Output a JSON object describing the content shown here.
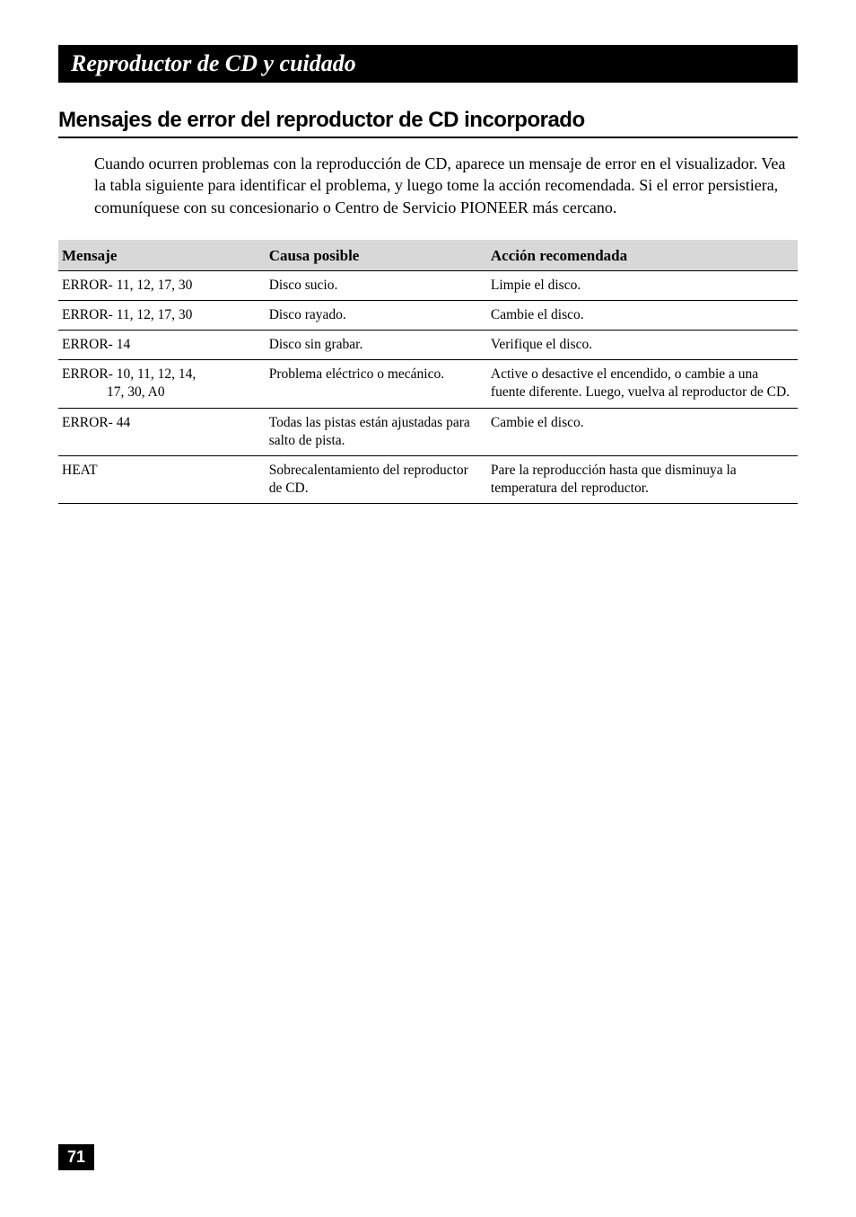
{
  "chapter": {
    "title": "Reproductor de CD y cuidado"
  },
  "section": {
    "title": "Mensajes de error del reproductor de CD incorporado",
    "intro": "Cuando ocurren problemas con la reproducción de CD, aparece un mensaje de error en el visualizador. Vea la tabla siguiente para identificar el problema, y luego tome la acción recomendada. Si el error persistiera, comuníquese con su concesionario o Centro de Servicio PIONEER más cercano."
  },
  "table": {
    "headers": {
      "message": "Mensaje",
      "cause": "Causa posible",
      "action": "Acción recomendada"
    },
    "rows": [
      {
        "message": "ERROR- 11, 12, 17, 30",
        "message_sub": "",
        "cause": "Disco sucio.",
        "action": "Limpie el disco."
      },
      {
        "message": "ERROR- 11, 12, 17, 30",
        "message_sub": "",
        "cause": "Disco rayado.",
        "action": "Cambie el disco."
      },
      {
        "message": "ERROR- 14",
        "message_sub": "",
        "cause": "Disco sin grabar.",
        "action": "Verifique el disco."
      },
      {
        "message": "ERROR- 10, 11, 12, 14,",
        "message_sub": "17, 30, A0",
        "cause": "Problema eléctrico o mecánico.",
        "action": "Active o desactive el encendido, o cambie a una fuente diferente. Luego, vuelva al reproductor de CD."
      },
      {
        "message": "ERROR- 44",
        "message_sub": "",
        "cause": "Todas las pistas están ajustadas para salto de pista.",
        "action": "Cambie el disco."
      },
      {
        "message": "HEAT",
        "message_sub": "",
        "cause": "Sobrecalentamiento del reproductor de CD.",
        "action": "Pare la reproducción hasta que disminuya la temperatura del reproductor."
      }
    ]
  },
  "page_number": "71"
}
